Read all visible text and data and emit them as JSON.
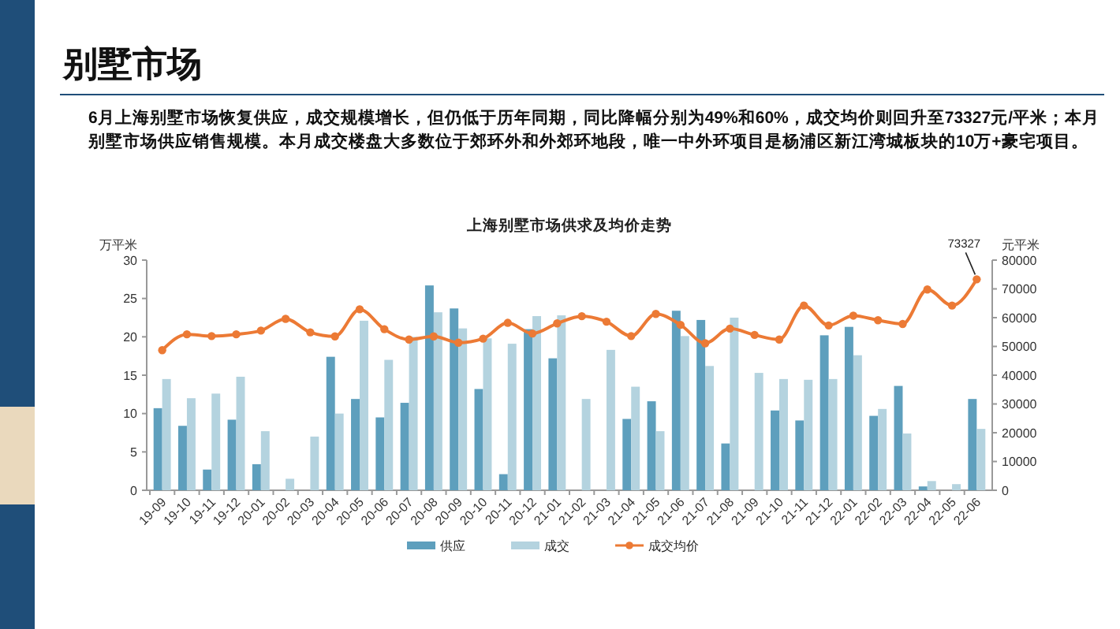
{
  "chart_data": {
    "type": "bar",
    "title": "上海别墅市场供求及均价走势",
    "annotations": [
      "别墅市场",
      "6月上海别墅市场恢复供应，成交规模增长，但仍低于历年同期，同比降幅分别为49%和60%，成交均价则回升至73327元/平米；本月别墅市场供应销售规模。本月成交楼盘大多数位于郊环外和外郊环地段，唯一中外环项目是杨浦区新江湾城板块的10万+豪宅项目。",
      "73327"
    ],
    "ylabel": "万平米",
    "y2label": "元平米",
    "categories": [
      "19-09",
      "19-10",
      "19-11",
      "19-12",
      "20-01",
      "20-02",
      "20-03",
      "20-04",
      "20-05",
      "20-06",
      "20-07",
      "20-08",
      "20-09",
      "20-10",
      "20-11",
      "20-12",
      "21-01",
      "21-02",
      "21-03",
      "21-04",
      "21-05",
      "21-06",
      "21-07",
      "21-08",
      "21-09",
      "21-10",
      "21-11",
      "21-12",
      "22-01",
      "22-02",
      "22-03",
      "22-04",
      "22-05",
      "22-06"
    ],
    "series": [
      {
        "name": "供应",
        "color": "#5e9fbd",
        "values": [
          10.7,
          8.4,
          2.7,
          9.2,
          3.4,
          null,
          null,
          17.4,
          11.9,
          9.5,
          11.4,
          26.7,
          23.7,
          13.2,
          2.1,
          21.0,
          17.2,
          null,
          null,
          9.3,
          11.6,
          23.4,
          22.2,
          6.1,
          null,
          10.4,
          9.1,
          20.2,
          21.3,
          9.7,
          13.6,
          0.5,
          null,
          11.9
        ]
      },
      {
        "name": "成交",
        "color": "#b4d3df",
        "values": [
          14.5,
          12.0,
          12.6,
          14.8,
          7.7,
          1.5,
          7.0,
          10.0,
          22.1,
          17.0,
          20.0,
          23.2,
          21.1,
          19.8,
          19.1,
          22.7,
          22.8,
          11.9,
          18.3,
          13.5,
          7.7,
          20.1,
          16.2,
          22.5,
          15.3,
          14.5,
          14.4,
          14.5,
          17.6,
          10.6,
          7.4,
          1.2,
          0.8,
          8.0
        ]
      },
      {
        "name": "成交均价",
        "type": "line",
        "axis": "y2",
        "color": "#ec7a35",
        "marker": "circle",
        "values": [
          48700,
          54200,
          53600,
          54200,
          55500,
          59600,
          54900,
          53500,
          62900,
          56000,
          52400,
          53500,
          51300,
          52700,
          58200,
          54500,
          58000,
          60500,
          58600,
          53600,
          61300,
          57500,
          51100,
          56200,
          54000,
          52400,
          64200,
          57300,
          60700,
          59100,
          57800,
          69800,
          64200,
          73327
        ]
      }
    ],
    "ylim": [
      0,
      30
    ],
    "yticks": [
      0,
      5,
      10,
      15,
      20,
      25,
      30
    ],
    "y2lim": [
      0,
      80000
    ],
    "y2ticks": [
      0,
      10000,
      20000,
      30000,
      40000,
      50000,
      60000,
      70000,
      80000
    ],
    "legend": "bottom"
  }
}
